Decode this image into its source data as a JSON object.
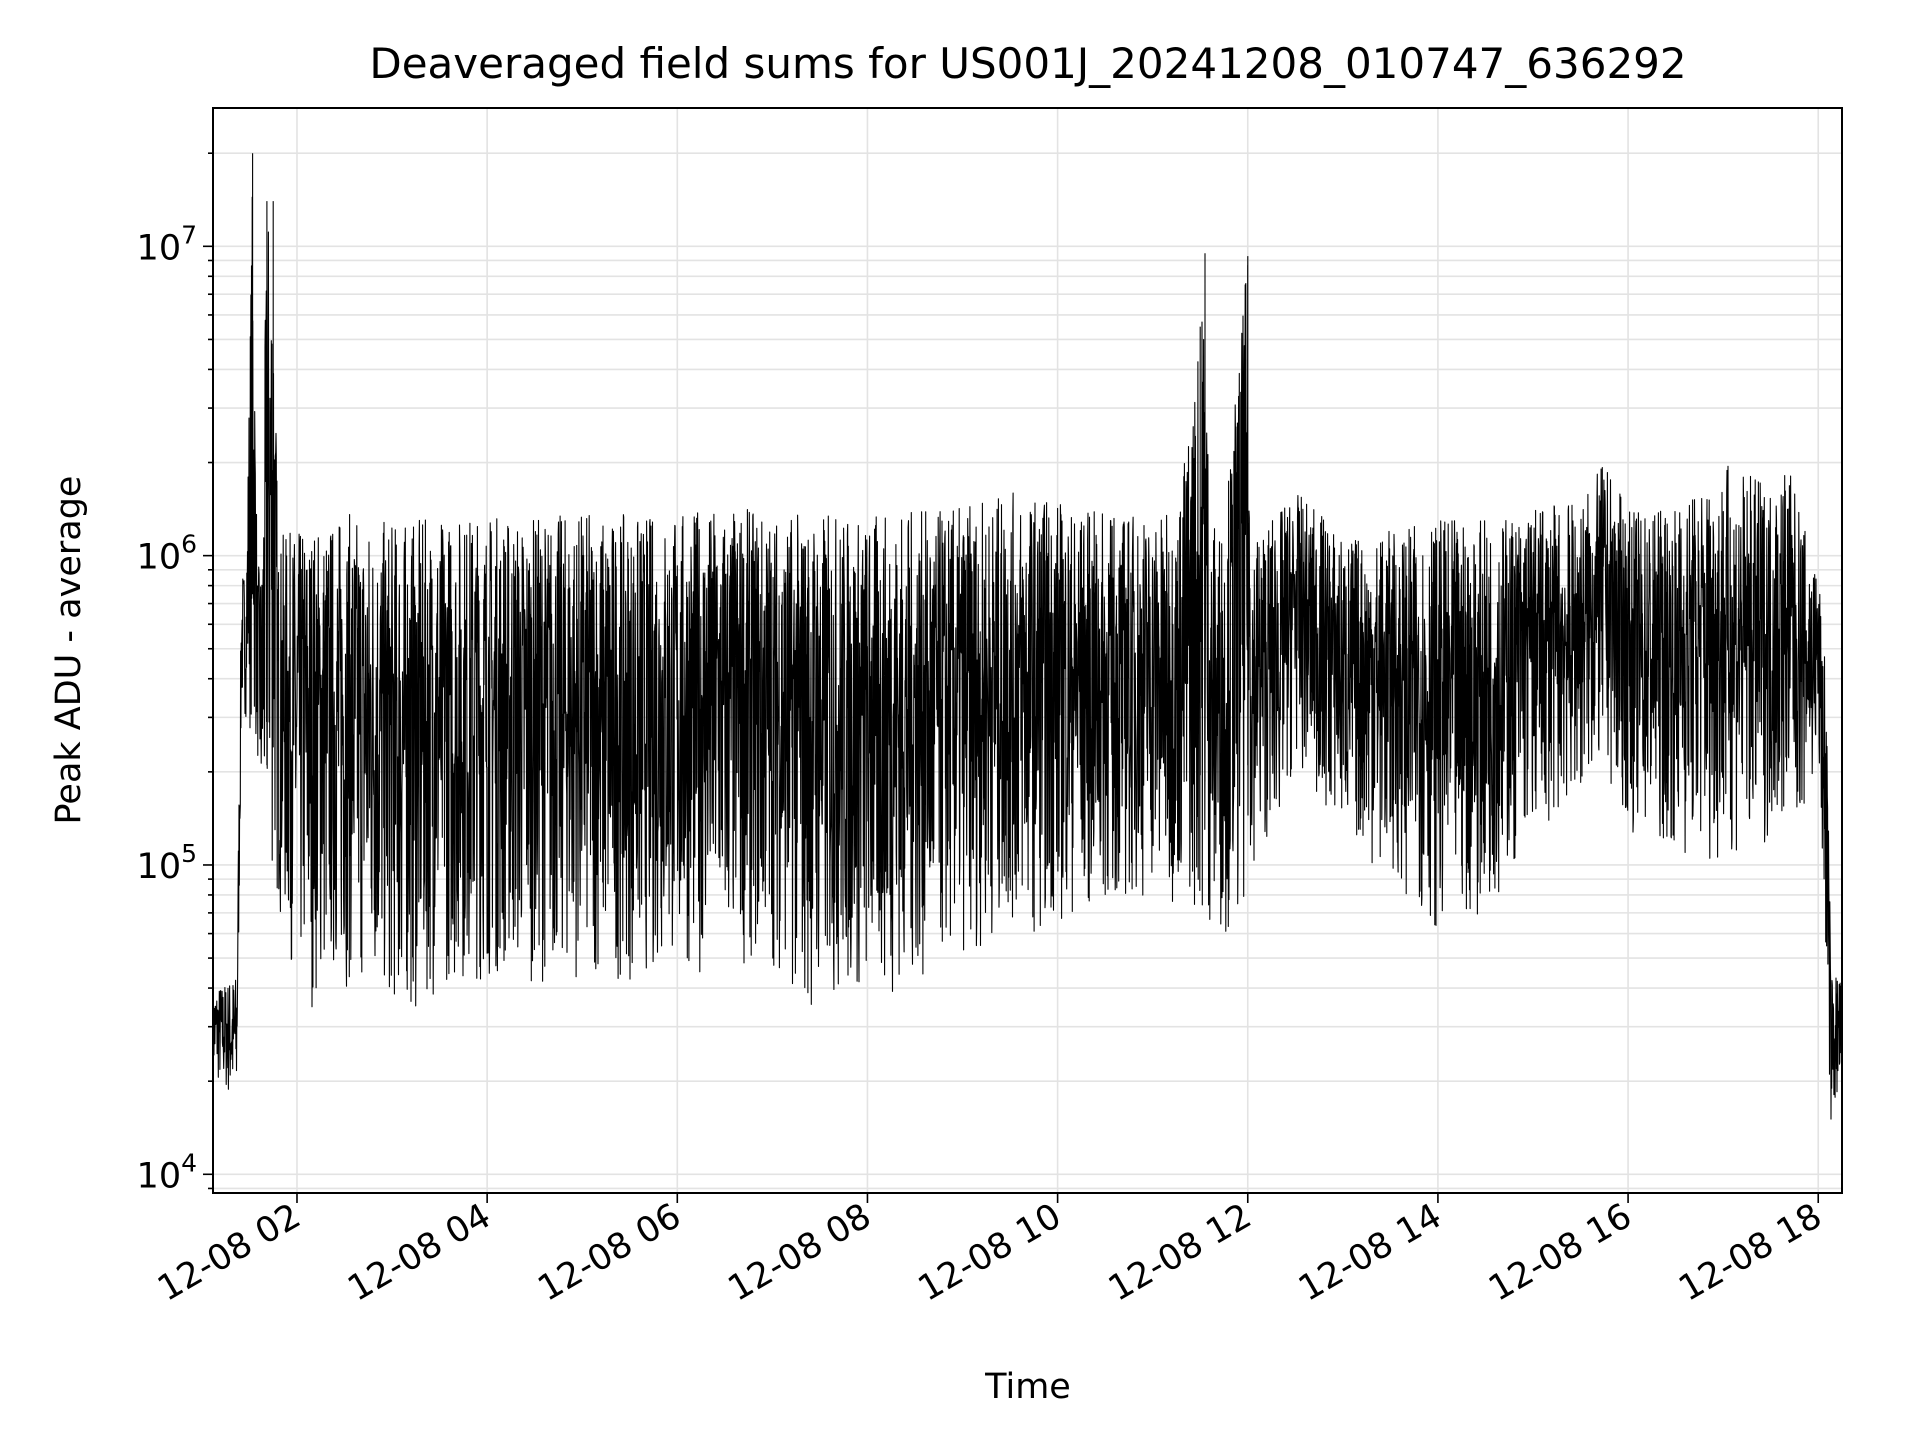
{
  "chart_data": {
    "type": "line",
    "title": "Deaveraged field sums for US001J_20241208_010747_636292",
    "xlabel": "Time",
    "ylabel": "Peak ADU - average",
    "yscale": "log",
    "xlim": [
      "12-08 01:07",
      "12-08 18:15"
    ],
    "ylim": [
      8700,
      28000000
    ],
    "grid": true,
    "x_ticks": [
      "12-08 02",
      "12-08 04",
      "12-08 06",
      "12-08 08",
      "12-08 10",
      "12-08 12",
      "12-08 14",
      "12-08 16",
      "12-08 18"
    ],
    "y_ticks": [
      {
        "base": "10",
        "exp": "4",
        "value": 10000
      },
      {
        "base": "10",
        "exp": "5",
        "value": 100000
      },
      {
        "base": "10",
        "exp": "6",
        "value": 1000000
      },
      {
        "base": "10",
        "exp": "7",
        "value": 10000000
      }
    ],
    "line_color": "#000000",
    "series": [
      {
        "x": [
          "12-08 01:07",
          "12-08 01:15",
          "12-08 01:22",
          "12-08 01:25",
          "12-08 01:28",
          "12-08 01:32",
          "12-08 01:35",
          "12-08 01:38",
          "12-08 01:41",
          "12-08 01:45",
          "12-08 01:48",
          "12-08 01:52",
          "12-08 01:55",
          "12-08 01:58",
          "12-08 02:01",
          "12-08 02:04",
          "12-08 02:10",
          "12-08 02:20",
          "12-08 02:30",
          "12-08 02:50",
          "12-08 03:00",
          "12-08 03:15",
          "12-08 03:30",
          "12-08 04:00",
          "12-08 04:30",
          "12-08 05:00",
          "12-08 05:30",
          "12-08 06:00",
          "12-08 06:30",
          "12-08 07:00",
          "12-08 07:20",
          "12-08 07:40",
          "12-08 08:00",
          "12-08 08:20",
          "12-08 08:40",
          "12-08 09:00",
          "12-08 09:30",
          "12-08 10:00",
          "12-08 10:15",
          "12-08 10:30",
          "12-08 11:00",
          "12-08 11:15",
          "12-08 11:30",
          "12-08 11:33",
          "12-08 11:36",
          "12-08 11:45",
          "12-08 12:00",
          "12-08 12:02",
          "12-08 12:20",
          "12-08 12:25",
          "12-08 12:30",
          "12-08 12:45",
          "12-08 13:00",
          "12-08 13:30",
          "12-08 14:00",
          "12-08 14:30",
          "12-08 15:00",
          "12-08 15:30",
          "12-08 15:45",
          "12-08 16:00",
          "12-08 16:30",
          "12-08 17:00",
          "12-08 17:30",
          "12-08 17:40",
          "12-08 17:50",
          "12-08 18:00",
          "12-08 18:05",
          "12-08 18:08",
          "12-08 18:12",
          "12-08 18:15"
        ],
        "y_high": [
          40000,
          42000,
          45000,
          900000,
          900000,
          20000000,
          900000,
          1000000,
          14000000,
          14000000,
          1100000,
          1200000,
          1200000,
          1200000,
          1200000,
          1300000,
          1300000,
          1300000,
          1400000,
          1300000,
          1300000,
          1300000,
          1350000,
          1400000,
          1350000,
          1400000,
          1350000,
          1400000,
          1450000,
          1400000,
          1400000,
          1400000,
          1350000,
          1400000,
          1400000,
          1450000,
          1600000,
          1550000,
          1400000,
          1400000,
          1400000,
          1350000,
          5500000,
          9500000,
          1300000,
          1300000,
          9300000,
          1200000,
          1400000,
          1500000,
          1600000,
          1400000,
          1150000,
          1200000,
          1300000,
          1300000,
          1450000,
          1500000,
          2000000,
          1400000,
          1450000,
          2000000,
          1700000,
          2100000,
          1300000,
          900000,
          450000,
          45000,
          45000,
          42000
        ],
        "y_low": [
          20000,
          18000,
          15000,
          300000,
          300000,
          250000,
          220000,
          90000,
          70000,
          80000,
          70000,
          60000,
          50000,
          45000,
          38000,
          36000,
          34000,
          40000,
          40000,
          36000,
          32000,
          32000,
          40000,
          42000,
          42000,
          42000,
          42000,
          44000,
          46000,
          48000,
          32000,
          35000,
          36000,
          38000,
          42000,
          50000,
          60000,
          62000,
          70000,
          68000,
          80000,
          75000,
          65000,
          62000,
          62000,
          60000,
          70000,
          100000,
          130000,
          160000,
          220000,
          150000,
          120000,
          90000,
          60000,
          70000,
          120000,
          160000,
          200000,
          130000,
          110000,
          100000,
          120000,
          130000,
          130000,
          200000,
          40000,
          14000,
          16000,
          20000
        ]
      }
    ]
  }
}
